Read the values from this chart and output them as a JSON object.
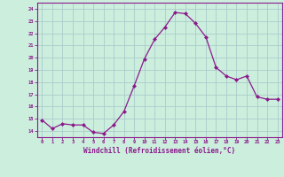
{
  "x": [
    0,
    1,
    2,
    3,
    4,
    5,
    6,
    7,
    8,
    9,
    10,
    11,
    12,
    13,
    14,
    15,
    16,
    17,
    18,
    19,
    20,
    21,
    22,
    23
  ],
  "y": [
    14.9,
    14.2,
    14.6,
    14.5,
    14.5,
    13.9,
    13.8,
    14.5,
    15.6,
    17.7,
    19.9,
    21.5,
    22.5,
    23.7,
    23.6,
    22.8,
    21.7,
    19.2,
    18.5,
    18.2,
    18.5,
    16.8,
    16.6,
    16.6
  ],
  "line_color": "#8B1A8B",
  "marker": "D",
  "marker_size": 2.0,
  "bg_color": "#CCEEDD",
  "grid_color": "#AACCCC",
  "xlabel": "Windchill (Refroidissement éolien,°C)",
  "xlabel_color": "#8B1A8B",
  "ylim": [
    13.5,
    24.5
  ],
  "xlim": [
    -0.5,
    23.5
  ],
  "tick_color": "#8B1A8B",
  "spine_color": "#8B1A8B",
  "axis_bg": "#CCEEDD"
}
